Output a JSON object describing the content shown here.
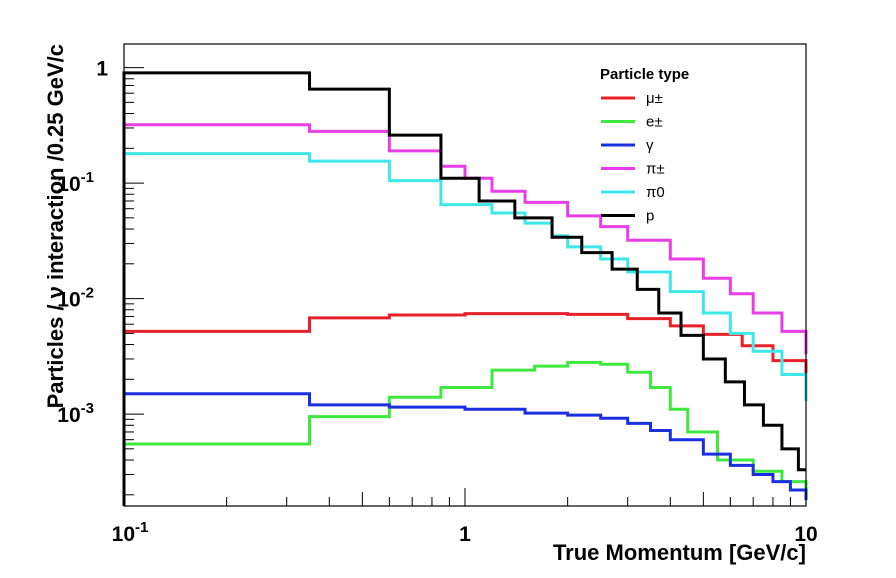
{
  "chart_data": {
    "type": "line",
    "step": true,
    "xlabel": "True Momentum [GeV/c]",
    "ylabel": "Particles /  ν interaction /0.25 GeV/c",
    "xscale": "log",
    "yscale": "log",
    "xlim": [
      0.1,
      10
    ],
    "ylim": [
      0.00016,
      1.6
    ],
    "x_ticks": [
      {
        "value": 0.1,
        "base": "10",
        "exp": "-1"
      },
      {
        "value": 1,
        "base": "1",
        "exp": ""
      },
      {
        "value": 10,
        "base": "10",
        "exp": ""
      }
    ],
    "y_ticks": [
      {
        "value": 0.001,
        "base": "10",
        "exp": "-3"
      },
      {
        "value": 0.01,
        "base": "10",
        "exp": "-2"
      },
      {
        "value": 0.1,
        "base": "10",
        "exp": "-1"
      },
      {
        "value": 1,
        "base": "1",
        "exp": ""
      }
    ],
    "legend": {
      "title": "Particle type",
      "position": "top-right"
    },
    "series": [
      {
        "name": "μ±",
        "color": "#e8202a",
        "points": [
          [
            0.1,
            0.0052
          ],
          [
            0.35,
            0.0068
          ],
          [
            0.6,
            0.0072
          ],
          [
            1.0,
            0.0074
          ],
          [
            1.5,
            0.0074
          ],
          [
            2.0,
            0.0073
          ],
          [
            3.0,
            0.0067
          ],
          [
            4.0,
            0.0058
          ],
          [
            5.0,
            0.0049
          ],
          [
            6.5,
            0.0039
          ],
          [
            8.0,
            0.0029
          ],
          [
            10,
            0.0019
          ]
        ]
      },
      {
        "name": "e±",
        "color": "#3ee83e",
        "points": [
          [
            0.1,
            0.00055
          ],
          [
            0.35,
            0.00095
          ],
          [
            0.6,
            0.0014
          ],
          [
            0.85,
            0.0017
          ],
          [
            1.2,
            0.0024
          ],
          [
            1.6,
            0.0026
          ],
          [
            2.0,
            0.0028
          ],
          [
            2.5,
            0.0027
          ],
          [
            3.0,
            0.0023
          ],
          [
            3.5,
            0.0017
          ],
          [
            4.0,
            0.0011
          ],
          [
            4.5,
            0.0007
          ],
          [
            5.5,
            0.0004
          ],
          [
            7.0,
            0.00032
          ],
          [
            8.5,
            0.00026
          ],
          [
            10,
            0.00022
          ]
        ]
      },
      {
        "name": "γ",
        "color": "#1a2fe0",
        "points": [
          [
            0.1,
            0.0015
          ],
          [
            0.35,
            0.0012
          ],
          [
            0.6,
            0.00115
          ],
          [
            1.0,
            0.0011
          ],
          [
            1.5,
            0.00102
          ],
          [
            2.0,
            0.00098
          ],
          [
            2.5,
            0.00092
          ],
          [
            3.0,
            0.00083
          ],
          [
            3.5,
            0.00072
          ],
          [
            4.0,
            0.0006
          ],
          [
            5.0,
            0.00045
          ],
          [
            6.0,
            0.00036
          ],
          [
            7.0,
            0.0003
          ],
          [
            8.0,
            0.00026
          ],
          [
            9.0,
            0.00022
          ],
          [
            10,
            0.00018
          ]
        ]
      },
      {
        "name": "π±",
        "color": "#e83ee8",
        "points": [
          [
            0.1,
            0.32
          ],
          [
            0.35,
            0.28
          ],
          [
            0.6,
            0.19
          ],
          [
            0.85,
            0.14
          ],
          [
            1.0,
            0.11
          ],
          [
            1.2,
            0.085
          ],
          [
            1.5,
            0.068
          ],
          [
            2.0,
            0.052
          ],
          [
            2.5,
            0.042
          ],
          [
            3.0,
            0.032
          ],
          [
            4.0,
            0.022
          ],
          [
            5.0,
            0.015
          ],
          [
            6.0,
            0.011
          ],
          [
            7.0,
            0.0075
          ],
          [
            8.5,
            0.0052
          ],
          [
            10,
            0.0033
          ]
        ]
      },
      {
        "name": "π0",
        "color": "#3ee8e8",
        "points": [
          [
            0.1,
            0.18
          ],
          [
            0.35,
            0.155
          ],
          [
            0.6,
            0.105
          ],
          [
            0.85,
            0.065
          ],
          [
            1.2,
            0.055
          ],
          [
            1.5,
            0.045
          ],
          [
            1.8,
            0.035
          ],
          [
            2.0,
            0.028
          ],
          [
            2.5,
            0.022
          ],
          [
            3.0,
            0.017
          ],
          [
            4.0,
            0.0115
          ],
          [
            5.0,
            0.0075
          ],
          [
            6.0,
            0.005
          ],
          [
            7.0,
            0.0035
          ],
          [
            8.5,
            0.0022
          ],
          [
            10,
            0.0013
          ]
        ]
      },
      {
        "name": "p",
        "color": "#000000",
        "points": [
          [
            0.1,
            0.9
          ],
          [
            0.35,
            0.65
          ],
          [
            0.6,
            0.26
          ],
          [
            0.85,
            0.11
          ],
          [
            1.1,
            0.07
          ],
          [
            1.4,
            0.05
          ],
          [
            1.8,
            0.034
          ],
          [
            2.2,
            0.025
          ],
          [
            2.7,
            0.018
          ],
          [
            3.2,
            0.012
          ],
          [
            3.7,
            0.0075
          ],
          [
            4.3,
            0.0048
          ],
          [
            5.0,
            0.003
          ],
          [
            5.8,
            0.0019
          ],
          [
            6.6,
            0.0012
          ],
          [
            7.5,
            0.0008
          ],
          [
            8.5,
            0.0005
          ],
          [
            9.5,
            0.00033
          ],
          [
            10,
            0.00033
          ]
        ]
      }
    ]
  }
}
